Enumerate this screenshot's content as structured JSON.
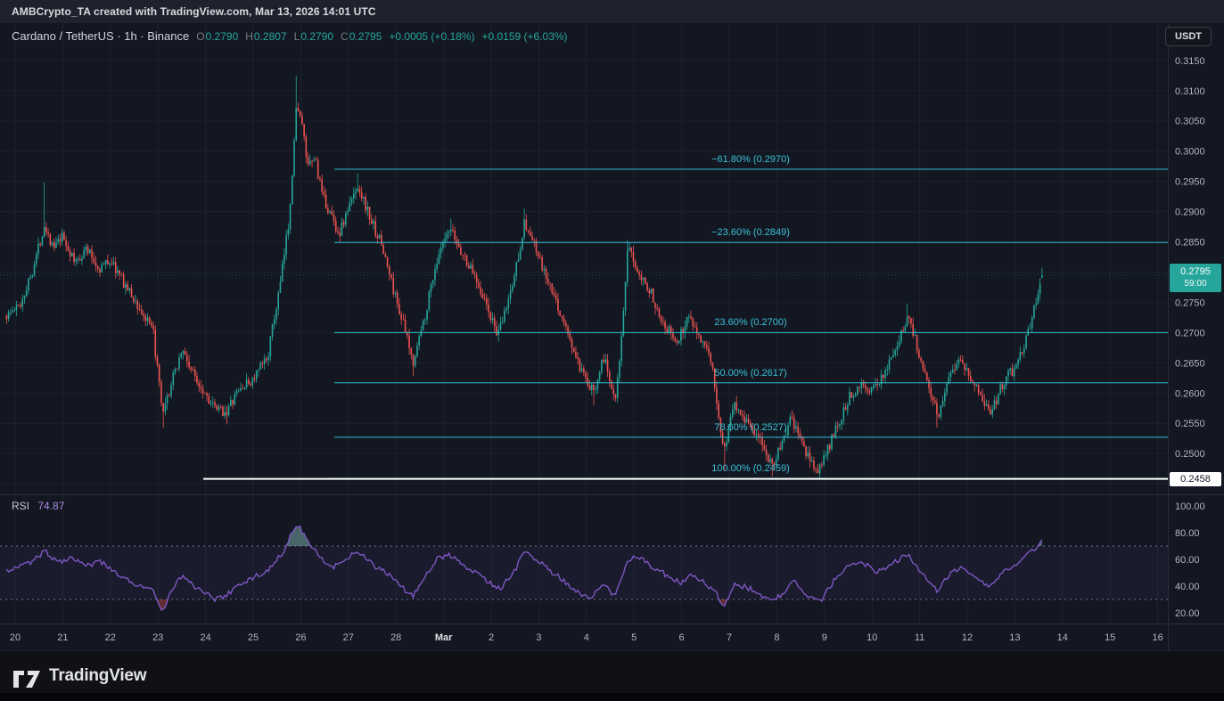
{
  "top_bar": {
    "attribution": "AMBCrypto_TA created with TradingView.com, Mar 13, 2026 14:01 UTC"
  },
  "header": {
    "symbol_title": "Cardano / TetherUS · 1h · Binance",
    "ohlc": {
      "o_label": "O",
      "o": "0.2790",
      "h_label": "H",
      "h": "0.2807",
      "l_label": "L",
      "l": "0.2790",
      "c_label": "C",
      "c": "0.2795",
      "change": "+0.0005 (+0.18%)",
      "session_change": "+0.0159 (+6.03%)"
    },
    "currency_button_label": "USDT"
  },
  "price_scale": {
    "labels": [
      "0.3150",
      "0.3100",
      "0.3050",
      "0.3000",
      "0.2950",
      "0.2900",
      "0.2850",
      "0.2750",
      "0.2700",
      "0.2650",
      "0.2600",
      "0.2550",
      "0.2500"
    ],
    "current_price": "0.2795",
    "countdown": "59:00",
    "marked_price": "0.2458"
  },
  "rsi_pane": {
    "label": "RSI",
    "value": "74.87",
    "scale_labels": [
      "100.00",
      "80.00",
      "60.00",
      "40.00",
      "20.00"
    ]
  },
  "time_axis": {
    "labels": [
      {
        "text": "20",
        "day": 20
      },
      {
        "text": "21",
        "day": 21
      },
      {
        "text": "22",
        "day": 22
      },
      {
        "text": "23",
        "day": 23
      },
      {
        "text": "24",
        "day": 24
      },
      {
        "text": "25",
        "day": 25
      },
      {
        "text": "26",
        "day": 26
      },
      {
        "text": "27",
        "day": 27
      },
      {
        "text": "28",
        "day": 28
      },
      {
        "text": "Mar",
        "day": 29,
        "major": true
      },
      {
        "text": "2",
        "day": 30
      },
      {
        "text": "3",
        "day": 31
      },
      {
        "text": "4",
        "day": 32
      },
      {
        "text": "5",
        "day": 33
      },
      {
        "text": "6",
        "day": 34
      },
      {
        "text": "7",
        "day": 35
      },
      {
        "text": "8",
        "day": 36
      },
      {
        "text": "9",
        "day": 37
      },
      {
        "text": "10",
        "day": 38
      },
      {
        "text": "11",
        "day": 39
      },
      {
        "text": "12",
        "day": 40
      },
      {
        "text": "13",
        "day": 41
      },
      {
        "text": "14",
        "day": 42
      },
      {
        "text": "15",
        "day": 43
      },
      {
        "text": "16",
        "day": 44
      }
    ]
  },
  "footer": {
    "brand": "TradingView"
  },
  "colors": {
    "up": "#26a69a",
    "down": "#ef5350",
    "fib": "#2fc1d6",
    "rsi_line": "#7e57c2",
    "support_line": "#ffffff",
    "current_price_badge": "#26a69a",
    "axis_text": "#b2b5be"
  },
  "chart_data": {
    "type": "candlestick",
    "title": "Cardano / TetherUS (ADA/USDT) · 1h · Binance, with Fibonacci retracement and RSI sub-pane",
    "time_range": "Feb 20 2026 – Mar 16 2026 (hourly bars, last bar Mar 13 ~14:00 UTC)",
    "day_index_note": "continuous day index: Feb 20–28 -> 20–28, Mar N -> 28+N (Mar 13 14:00 ≈ 41.58)",
    "visible_price_range": [
      0.2432,
      0.321
    ],
    "fib_levels": [
      {
        "label": "−61.80% (0.2970)",
        "price": 0.297
      },
      {
        "label": "−23.60% (0.2849)",
        "price": 0.2849
      },
      {
        "label": "23.60% (0.2700)",
        "price": 0.27
      },
      {
        "label": "50.00% (0.2617)",
        "price": 0.2617
      },
      {
        "label": "78.60% (0.2527)",
        "price": 0.2527
      },
      {
        "label": "100.00% (0.2459)",
        "price": 0.2459
      }
    ],
    "support_line_price": 0.2458,
    "last_candle": {
      "open": 0.279,
      "high": 0.2807,
      "low": 0.279,
      "close": 0.2795
    },
    "price_path_day_price": [
      [
        19.82,
        0.2728
      ],
      [
        20.1,
        0.2745
      ],
      [
        20.35,
        0.28
      ],
      [
        20.62,
        0.288
      ],
      [
        20.8,
        0.2838
      ],
      [
        21.0,
        0.2858
      ],
      [
        21.25,
        0.2815
      ],
      [
        21.5,
        0.284
      ],
      [
        21.75,
        0.2805
      ],
      [
        22.0,
        0.282
      ],
      [
        22.3,
        0.278
      ],
      [
        22.6,
        0.274
      ],
      [
        22.9,
        0.27
      ],
      [
        23.1,
        0.256
      ],
      [
        23.3,
        0.262
      ],
      [
        23.5,
        0.2672
      ],
      [
        23.75,
        0.263
      ],
      [
        24.0,
        0.26
      ],
      [
        24.2,
        0.2572
      ],
      [
        24.45,
        0.257
      ],
      [
        24.7,
        0.2605
      ],
      [
        25.0,
        0.2622
      ],
      [
        25.3,
        0.266
      ],
      [
        25.55,
        0.277
      ],
      [
        25.75,
        0.2885
      ],
      [
        25.92,
        0.3085
      ],
      [
        26.05,
        0.303
      ],
      [
        26.15,
        0.297
      ],
      [
        26.3,
        0.299
      ],
      [
        26.45,
        0.2925
      ],
      [
        26.65,
        0.2892
      ],
      [
        26.8,
        0.2862
      ],
      [
        27.0,
        0.2905
      ],
      [
        27.2,
        0.2945
      ],
      [
        27.45,
        0.289
      ],
      [
        27.7,
        0.2845
      ],
      [
        27.95,
        0.277
      ],
      [
        28.15,
        0.2715
      ],
      [
        28.35,
        0.265
      ],
      [
        28.6,
        0.2725
      ],
      [
        28.8,
        0.2802
      ],
      [
        29.0,
        0.2848
      ],
      [
        29.15,
        0.2868
      ],
      [
        29.4,
        0.2828
      ],
      [
        29.7,
        0.2788
      ],
      [
        30.0,
        0.2722
      ],
      [
        30.15,
        0.2695
      ],
      [
        30.45,
        0.278
      ],
      [
        30.7,
        0.2882
      ],
      [
        30.9,
        0.2845
      ],
      [
        31.1,
        0.28
      ],
      [
        31.35,
        0.2752
      ],
      [
        31.6,
        0.27
      ],
      [
        31.85,
        0.2642
      ],
      [
        32.0,
        0.2615
      ],
      [
        32.15,
        0.2602
      ],
      [
        32.35,
        0.2662
      ],
      [
        32.6,
        0.2592
      ],
      [
        32.75,
        0.27
      ],
      [
        32.87,
        0.2838
      ],
      [
        33.05,
        0.281
      ],
      [
        33.3,
        0.2775
      ],
      [
        33.6,
        0.272
      ],
      [
        33.9,
        0.2682
      ],
      [
        34.15,
        0.273
      ],
      [
        34.4,
        0.2692
      ],
      [
        34.65,
        0.264
      ],
      [
        34.88,
        0.2502
      ],
      [
        35.1,
        0.2585
      ],
      [
        35.45,
        0.2545
      ],
      [
        35.7,
        0.2512
      ],
      [
        35.9,
        0.2482
      ],
      [
        36.05,
        0.2505
      ],
      [
        36.3,
        0.2558
      ],
      [
        36.6,
        0.2502
      ],
      [
        36.85,
        0.247
      ],
      [
        37.0,
        0.2492
      ],
      [
        37.2,
        0.2532
      ],
      [
        37.5,
        0.259
      ],
      [
        37.75,
        0.2618
      ],
      [
        38.0,
        0.26
      ],
      [
        38.3,
        0.2642
      ],
      [
        38.6,
        0.2692
      ],
      [
        38.75,
        0.2732
      ],
      [
        39.0,
        0.2662
      ],
      [
        39.2,
        0.2612
      ],
      [
        39.38,
        0.256
      ],
      [
        39.6,
        0.2628
      ],
      [
        39.85,
        0.2662
      ],
      [
        40.15,
        0.2612
      ],
      [
        40.5,
        0.2568
      ],
      [
        40.75,
        0.2618
      ],
      [
        41.0,
        0.2642
      ],
      [
        41.2,
        0.2682
      ],
      [
        41.35,
        0.2722
      ],
      [
        41.5,
        0.2772
      ],
      [
        41.58,
        0.2795
      ]
    ],
    "high_spikes": [
      [
        20.62,
        0.2948
      ],
      [
        25.92,
        0.3125
      ],
      [
        27.2,
        0.2963
      ],
      [
        29.15,
        0.2888
      ],
      [
        30.7,
        0.2905
      ],
      [
        32.87,
        0.2853
      ],
      [
        38.75,
        0.2748
      ],
      [
        41.58,
        0.2807
      ]
    ],
    "low_spikes": [
      [
        23.1,
        0.2542
      ],
      [
        24.45,
        0.2548
      ],
      [
        28.35,
        0.2628
      ],
      [
        32.15,
        0.258
      ],
      [
        34.9,
        0.2473
      ],
      [
        35.9,
        0.2462
      ],
      [
        36.9,
        0.2458
      ],
      [
        39.38,
        0.2543
      ]
    ],
    "rsi": {
      "current": 74.87,
      "overbought": 70,
      "oversold": 30,
      "path_day_value": [
        [
          19.82,
          52
        ],
        [
          20.35,
          58
        ],
        [
          20.62,
          66
        ],
        [
          20.9,
          58
        ],
        [
          21.2,
          62
        ],
        [
          21.5,
          55
        ],
        [
          21.8,
          58
        ],
        [
          22.1,
          50
        ],
        [
          22.5,
          42
        ],
        [
          22.9,
          36
        ],
        [
          23.08,
          20
        ],
        [
          23.3,
          38
        ],
        [
          23.5,
          48
        ],
        [
          23.75,
          40
        ],
        [
          24.0,
          35
        ],
        [
          24.2,
          30
        ],
        [
          24.45,
          33
        ],
        [
          24.7,
          42
        ],
        [
          25.0,
          46
        ],
        [
          25.3,
          52
        ],
        [
          25.6,
          64
        ],
        [
          25.85,
          82
        ],
        [
          25.95,
          86
        ],
        [
          26.1,
          76
        ],
        [
          26.3,
          68
        ],
        [
          26.5,
          58
        ],
        [
          26.7,
          54
        ],
        [
          27.0,
          62
        ],
        [
          27.2,
          66
        ],
        [
          27.5,
          56
        ],
        [
          27.8,
          50
        ],
        [
          28.1,
          40
        ],
        [
          28.35,
          32
        ],
        [
          28.6,
          46
        ],
        [
          28.85,
          60
        ],
        [
          29.1,
          64
        ],
        [
          29.4,
          56
        ],
        [
          29.7,
          50
        ],
        [
          30.0,
          42
        ],
        [
          30.2,
          38
        ],
        [
          30.5,
          52
        ],
        [
          30.7,
          66
        ],
        [
          31.0,
          58
        ],
        [
          31.3,
          50
        ],
        [
          31.6,
          42
        ],
        [
          31.9,
          34
        ],
        [
          32.1,
          31
        ],
        [
          32.35,
          42
        ],
        [
          32.6,
          32
        ],
        [
          32.87,
          60
        ],
        [
          33.1,
          62
        ],
        [
          33.4,
          54
        ],
        [
          33.7,
          48
        ],
        [
          34.0,
          42
        ],
        [
          34.2,
          48
        ],
        [
          34.5,
          42
        ],
        [
          34.7,
          36
        ],
        [
          34.9,
          24
        ],
        [
          35.1,
          42
        ],
        [
          35.45,
          38
        ],
        [
          35.7,
          32
        ],
        [
          35.9,
          28
        ],
        [
          36.1,
          34
        ],
        [
          36.35,
          44
        ],
        [
          36.6,
          32
        ],
        [
          36.9,
          28
        ],
        [
          37.2,
          44
        ],
        [
          37.5,
          54
        ],
        [
          37.8,
          58
        ],
        [
          38.1,
          50
        ],
        [
          38.4,
          56
        ],
        [
          38.75,
          64
        ],
        [
          39.0,
          50
        ],
        [
          39.38,
          36
        ],
        [
          39.6,
          48
        ],
        [
          39.85,
          54
        ],
        [
          40.15,
          46
        ],
        [
          40.5,
          40
        ],
        [
          40.75,
          50
        ],
        [
          41.0,
          54
        ],
        [
          41.2,
          62
        ],
        [
          41.35,
          66
        ],
        [
          41.5,
          71
        ],
        [
          41.58,
          74.87
        ]
      ]
    },
    "note": "price and RSI paths are approximate anchor points read from the chart pixels"
  }
}
